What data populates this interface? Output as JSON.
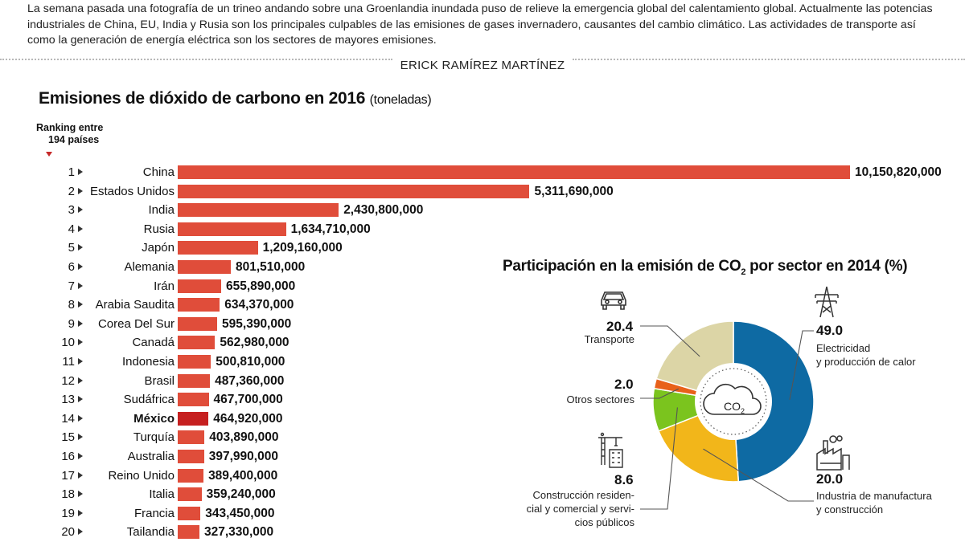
{
  "intro_text": "La semana pasada una fotografía de un trineo andando sobre una Groenlandia inundada puso de relieve la emergencia global del calentamiento global. Actualmente las potencias industriales de China, EU, India y Rusia son los principales culpables de las emisiones de gases invernadero, causantes del cambio climático. Las actividades de transporte así como la generación de energía eléctrica son los sectores de mayores emisiones.",
  "author": "ERICK RAMÍREZ MARTÍNEZ",
  "colors": {
    "bar": "#e04d3a",
    "highlight": "#c62020",
    "electricidad": "#0e6aa3",
    "industria": "#f2b61a",
    "construccion": "#7bc41e",
    "otros": "#e8611a",
    "transporte": "#dcd5a6"
  },
  "chart_data": [
    {
      "type": "bar",
      "orientation": "horizontal",
      "title": "Emisiones de dióxido de carbono en 2016",
      "unit": "(toneladas)",
      "rank_header": [
        "Ranking entre",
        "194 países"
      ],
      "highlight": "México",
      "categories": [
        "China",
        "Estados Unidos",
        "India",
        "Rusia",
        "Japón",
        "Alemania",
        "Irán",
        "Arabia Saudita",
        "Corea Del Sur",
        "Canadá",
        "Indonesia",
        "Brasil",
        "Sudáfrica",
        "México",
        "Turquía",
        "Australia",
        "Reino Unido",
        "Italia",
        "Francia",
        "Tailandia"
      ],
      "ranks": [
        "1",
        "2",
        "3",
        "4",
        "5",
        "6",
        "7",
        "8",
        "9",
        "10",
        "11",
        "12",
        "13",
        "14",
        "15",
        "16",
        "17",
        "18",
        "19",
        "20"
      ],
      "values": [
        10150820000,
        5311690000,
        2430800000,
        1634710000,
        1209160000,
        801510000,
        655890000,
        634370000,
        595390000,
        562980000,
        500810000,
        487360000,
        467700000,
        464920000,
        403890000,
        397990000,
        389400000,
        359240000,
        343450000,
        327330000
      ],
      "value_labels": [
        "10,150,820,000",
        "5,311,690,000",
        "2,430,800,000",
        "1,634,710,000",
        "1,209,160,000",
        "801,510,000",
        "655,890,000",
        "634,370,000",
        "595,390,000",
        "562,980,000",
        "500,810,000",
        "487,360,000",
        "467,700,000",
        "464,920,000",
        "403,890,000",
        "397,990,000",
        "389,400,000",
        "359,240,000",
        "343,450,000",
        "327,330,000"
      ]
    },
    {
      "type": "pie",
      "variant": "donut",
      "title": "Participación en la emisión de CO",
      "title_sub": "2",
      "title_suffix": " por sector en 2014 (%)",
      "center_label": "CO",
      "center_sub": "2",
      "slices": [
        {
          "key": "electricidad",
          "value": 49.0,
          "label": "49.0",
          "desc": [
            "Electricidad",
            "y producción de calor"
          ],
          "icon": "power-tower-icon"
        },
        {
          "key": "industria",
          "value": 20.0,
          "label": "20.0",
          "desc": [
            "Industria de manufactura",
            "y construcción"
          ],
          "icon": "factory-icon"
        },
        {
          "key": "construccion",
          "value": 8.6,
          "label": "8.6",
          "desc": [
            "Construcción residen-",
            "cial y comercial y servi-",
            "cios públicos"
          ],
          "icon": "crane-building-icon"
        },
        {
          "key": "otros",
          "value": 2.0,
          "label": "2.0",
          "desc": [
            "Otros sectores"
          ],
          "icon": ""
        },
        {
          "key": "transporte",
          "value": 20.4,
          "label": "20.4",
          "desc": [
            "Transporte"
          ],
          "icon": "car-icon"
        }
      ]
    }
  ]
}
